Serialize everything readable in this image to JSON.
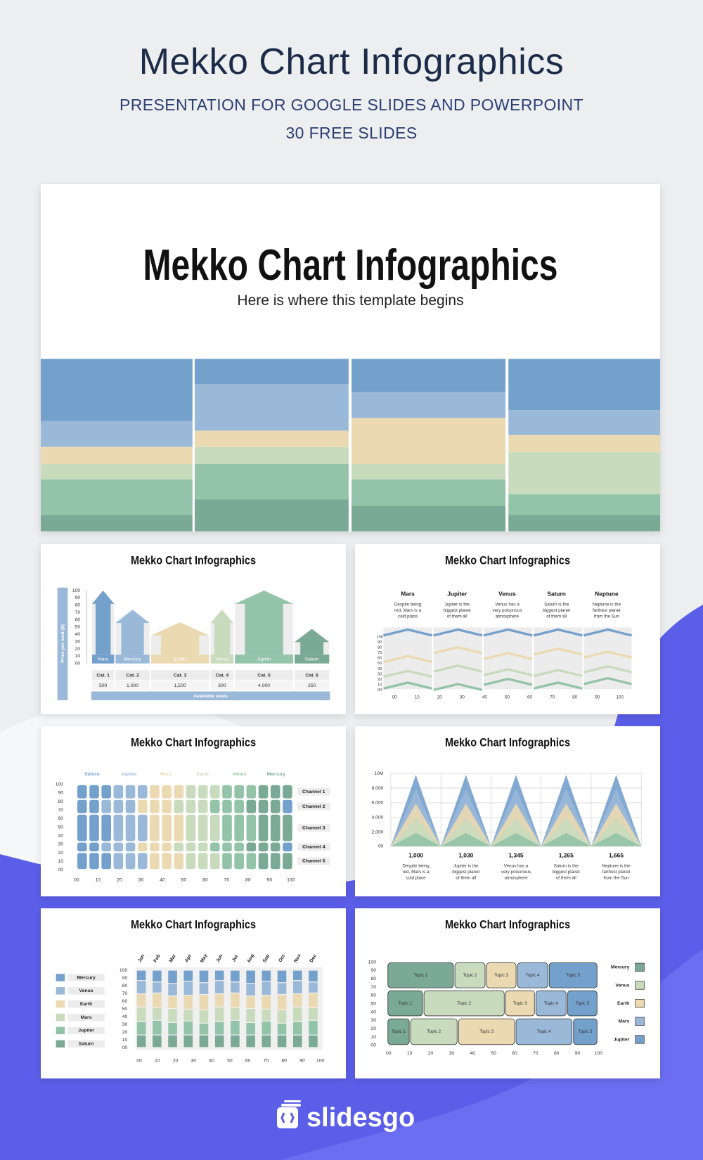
{
  "header": {
    "title": "Mekko Chart Infographics",
    "subtitle": "PRESENTATION FOR GOOGLE SLIDES AND POWERPOINT",
    "note": "30 FREE SLIDES"
  },
  "hero": {
    "title": "Mekko Chart Infographics",
    "subtitle": "Here is where this template begins"
  },
  "slides": [
    {
      "title": "Mekko Chart Infographics",
      "axis_label": "Price per seat ($)",
      "yticks": [
        "100",
        "90",
        "80",
        "70",
        "60",
        "50",
        "40",
        "30",
        "20",
        "10",
        "00"
      ],
      "bars": [
        "Mars",
        "Mercury",
        "Earth",
        "Venus",
        "Jupiter",
        "Saturn"
      ],
      "categories": [
        "Cat. 1",
        "Cat. 2",
        "Cat. 3",
        "Cat. 4",
        "Cat. 5",
        "Cat. 6"
      ],
      "values": [
        "500",
        "1,000",
        "1,500",
        "300",
        "4,000",
        "250"
      ],
      "x_label": "Available seats"
    },
    {
      "title": "Mekko Chart Infographics",
      "planets": [
        {
          "name": "Mars",
          "text": [
            "Despite being",
            "red, Mars is a",
            "cold place"
          ]
        },
        {
          "name": "Jupiter",
          "text": [
            "Jupiter is the",
            "biggest planet",
            "of them all"
          ]
        },
        {
          "name": "Venus",
          "text": [
            "Venus has a",
            "very poisonous",
            "atmosphere"
          ]
        },
        {
          "name": "Saturn",
          "text": [
            "Saturn is the",
            "biggest planet",
            "of them all"
          ]
        },
        {
          "name": "Neptune",
          "text": [
            "Neptune is the",
            "farthest planet",
            "from the Sun"
          ]
        }
      ],
      "yticks": [
        "100",
        "90",
        "80",
        "70",
        "60",
        "50",
        "40",
        "30",
        "20",
        "10",
        "00"
      ],
      "xticks": [
        "00",
        "10",
        "20",
        "30",
        "40",
        "50",
        "60",
        "70",
        "80",
        "90",
        "100"
      ]
    },
    {
      "title": "Mekko Chart Infographics",
      "planets": [
        "Saturn",
        "Jupiter",
        "Mars",
        "Earth",
        "Venus",
        "Mercury"
      ],
      "channels": [
        "Channel 1",
        "Channel 2",
        "Channel 3",
        "Channel 4",
        "Channel 5"
      ],
      "yticks": [
        "100",
        "90",
        "80",
        "70",
        "60",
        "50",
        "40",
        "30",
        "20",
        "10",
        "00"
      ],
      "xticks": [
        "00",
        "10",
        "20",
        "30",
        "40",
        "50",
        "60",
        "70",
        "80",
        "90",
        "100"
      ]
    },
    {
      "title": "Mekko Chart Infographics",
      "yticks": [
        "10M",
        "8,000",
        "6,000",
        "4,000",
        "2,000",
        "00"
      ],
      "columns": [
        {
          "value": "1,000",
          "text": [
            "Despite being",
            "red, Mars is a",
            "cold place"
          ]
        },
        {
          "value": "1,030",
          "text": [
            "Jupiter is the",
            "biggest planet",
            "of them all"
          ]
        },
        {
          "value": "1,345",
          "text": [
            "Venus has a",
            "very poisonous",
            "atmosphere"
          ]
        },
        {
          "value": "1,265",
          "text": [
            "Saturn is the",
            "biggest planet",
            "of them all"
          ]
        },
        {
          "value": "1,665",
          "text": [
            "Neptune is the",
            "farthest planet",
            "from the Sun"
          ]
        }
      ]
    },
    {
      "title": "Mekko Chart Infographics",
      "legend": [
        "Mercury",
        "Venus",
        "Earth",
        "Mars",
        "Jupiter",
        "Saturn"
      ],
      "months": [
        "Jan",
        "Feb",
        "Mar",
        "Apr",
        "May",
        "Jun",
        "Jul",
        "Aug",
        "Sep",
        "Oct",
        "Nov",
        "Dec"
      ],
      "yticks": [
        "100",
        "90",
        "80",
        "70",
        "60",
        "50",
        "40",
        "30",
        "20",
        "10",
        "00"
      ],
      "xticks": [
        "00",
        "10",
        "20",
        "30",
        "40",
        "50",
        "60",
        "70",
        "80",
        "90",
        "100"
      ]
    },
    {
      "title": "Mekko Chart Infographics",
      "rows": [
        [
          "Topic 1",
          "Topic 2",
          "Topic 3",
          "Topic 4",
          "Topic 5"
        ],
        [
          "Topic 1",
          "Topic 2",
          "Topic 3",
          "Topic 4",
          "Topic 5"
        ],
        [
          "Topic 1",
          "Topic 2",
          "Topic 3",
          "Topic 4",
          "Topic 5"
        ]
      ],
      "legend": [
        "Mercury",
        "Venus",
        "Earth",
        "Mars",
        "Jupiter"
      ],
      "yticks": [
        "100",
        "90",
        "80",
        "70",
        "60",
        "50",
        "40",
        "30",
        "20",
        "10",
        "00"
      ],
      "xticks": [
        "00",
        "10",
        "20",
        "30",
        "40",
        "50",
        "60",
        "70",
        "80",
        "90",
        "100"
      ]
    }
  ],
  "footer": {
    "brand": "slidesgo"
  }
}
